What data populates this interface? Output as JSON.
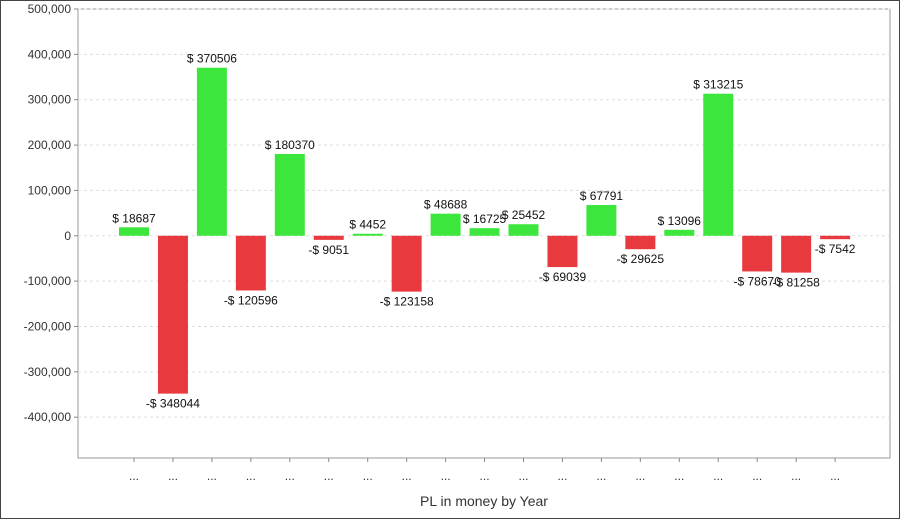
{
  "chart_data": {
    "type": "bar",
    "title": "",
    "xlabel": "PL in money by Year",
    "ylabel": "",
    "ylim": [
      -490000,
      500000
    ],
    "yticks": [
      500000,
      400000,
      300000,
      200000,
      100000,
      0,
      -100000,
      -200000,
      -300000,
      -400000
    ],
    "ytick_labels": [
      "500,000",
      "400,000",
      "300,000",
      "200,000",
      "100,000",
      "0",
      "-100,000",
      "-200,000",
      "-300,000",
      "-400,000"
    ],
    "grid": true,
    "categories": [
      "...",
      "...",
      "...",
      "...",
      "...",
      "...",
      "...",
      "...",
      "...",
      "...",
      "...",
      "...",
      "...",
      "...",
      "...",
      "...",
      "...",
      "...",
      "..."
    ],
    "values": [
      18687,
      -348044,
      370506,
      -120596,
      180370,
      -9051,
      4452,
      -123158,
      48688,
      16725,
      25452,
      -69039,
      67791,
      -29625,
      13096,
      313215,
      -78670,
      -81258,
      -7542
    ],
    "data_labels": [
      "$ 18687",
      "-$ 348044",
      "$ 370506",
      "-$ 120596",
      "$ 180370",
      "-$ 9051",
      "$ 4452",
      "-$ 123158",
      "$ 48688",
      "$ 16725",
      "$ 25452",
      "-$ 69039",
      "$ 67791",
      "-$ 29625",
      "$ 13096",
      "$ 313215",
      "-$ 78670",
      "-$ 81258",
      "-$ 7542"
    ],
    "colors": {
      "positive": "#3de63d",
      "negative": "#e8393f"
    }
  }
}
